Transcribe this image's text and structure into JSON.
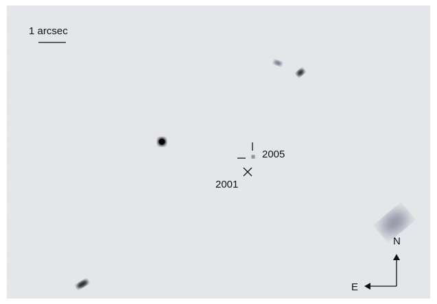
{
  "labels": {
    "scale_bar": "1 arcsec",
    "marker_2005": "2005",
    "marker_2001": "2001",
    "north": "N",
    "east": "E"
  }
}
